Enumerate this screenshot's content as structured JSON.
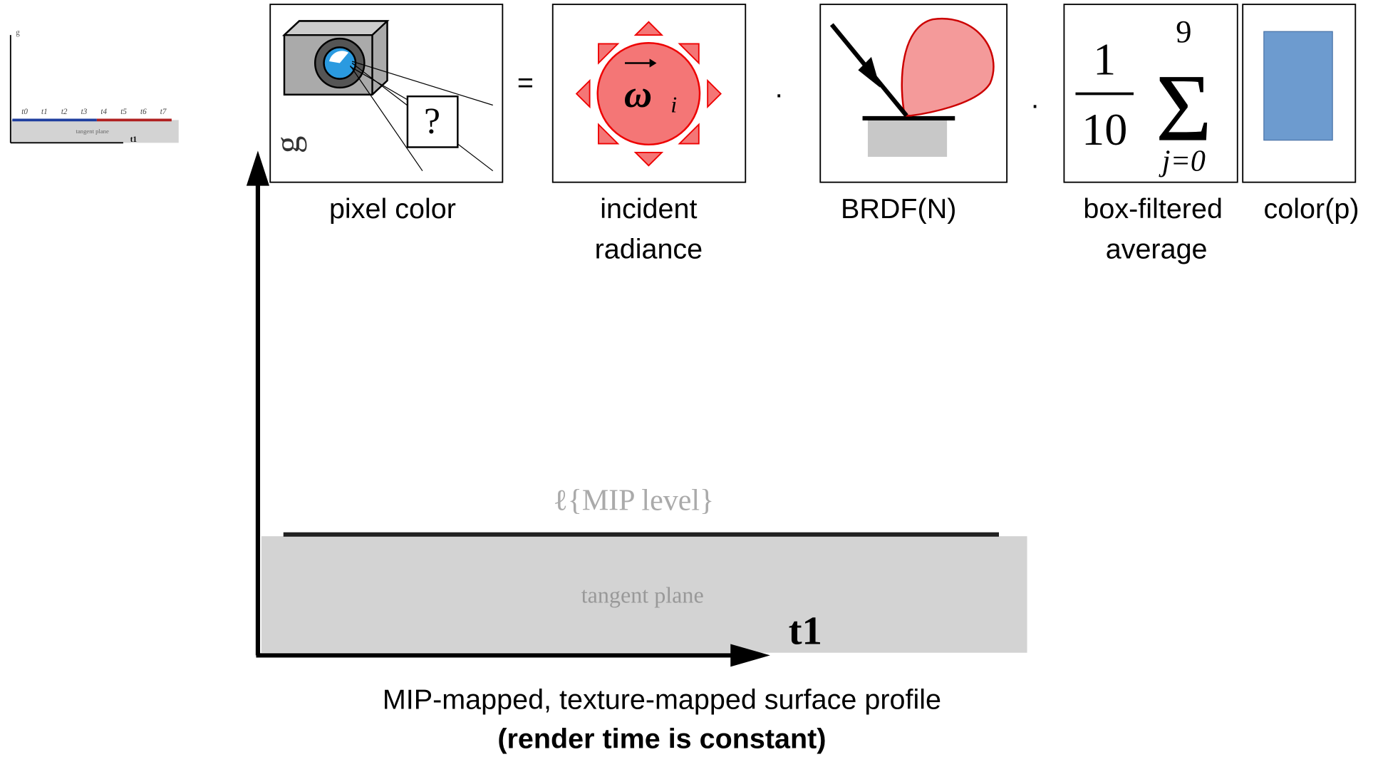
{
  "thumbnail": {
    "axis_label": "g",
    "ticks": [
      "t0",
      "t1",
      "t2",
      "t3",
      "t4",
      "t5",
      "t6",
      "t7"
    ],
    "plane_label": "tangent plane",
    "axis_x_label": "t1"
  },
  "equation": {
    "pixel": {
      "label": "pixel color",
      "question": "?"
    },
    "equals": "=",
    "radiance": {
      "label_lines": [
        "incident",
        "radiance"
      ],
      "symbol": "ω",
      "subscript": "i"
    },
    "dot1": "·",
    "brdf": {
      "label": "BRDF(N)"
    },
    "dot2": "·",
    "average": {
      "label_lines": [
        "box-filtered",
        "average"
      ],
      "numerator": "1",
      "denominator": "10",
      "sigma": "Σ",
      "upper": "9",
      "lower": "j=0"
    },
    "color": {
      "label": "color(p)"
    }
  },
  "profile": {
    "axis_label": "g",
    "level_label": "ℓ{MIP level}",
    "plane_label": "tangent plane",
    "axis_x_label": "t1",
    "caption": "MIP-mapped, texture-mapped surface profile",
    "note": "(render time is constant)"
  }
}
